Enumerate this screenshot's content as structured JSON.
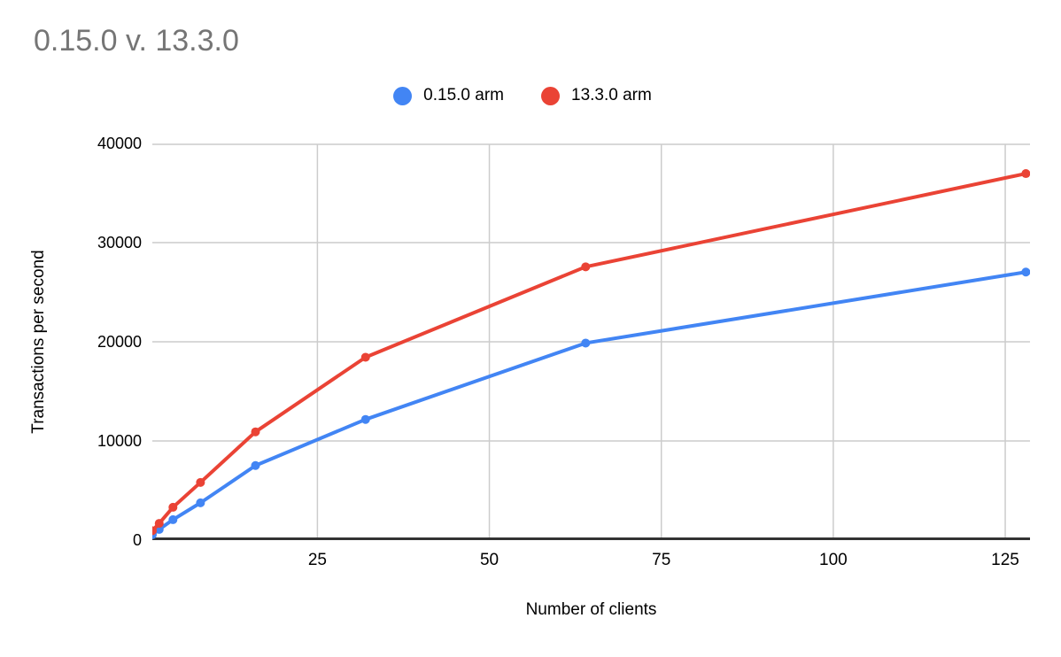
{
  "page": {
    "title": "0.15.0 v. 13.3.0"
  },
  "colors": {
    "background": "#ffffff",
    "title_text": "#757575",
    "axis_text": "#000000",
    "gridline": "#cccccc",
    "axis_line": "#333333",
    "series_blue": "#4285f4",
    "series_red": "#ea4335"
  },
  "chart_data": {
    "type": "line",
    "title": "0.15.0 v. 13.3.0",
    "xlabel": "Number of clients",
    "ylabel": "Transactions per second",
    "x": [
      1,
      2,
      4,
      8,
      16,
      32,
      64,
      128
    ],
    "series": [
      {
        "name": "0.15.0 arm",
        "color": "#4285f4",
        "values": [
          550,
          1080,
          2060,
          3760,
          7520,
          12170,
          19870,
          27030
        ]
      },
      {
        "name": "13.3.0 arm",
        "color": "#ea4335",
        "values": [
          950,
          1690,
          3310,
          5820,
          10920,
          18440,
          27560,
          36960
        ]
      }
    ],
    "x_ticks": [
      25,
      50,
      75,
      100,
      125
    ],
    "y_ticks": [
      0,
      10000,
      20000,
      30000,
      40000
    ],
    "xlim": [
      1,
      128.6
    ],
    "ylim": [
      0,
      40000
    ],
    "grid": true,
    "legend_position": "top",
    "marker": "circle",
    "line_width": 4
  }
}
